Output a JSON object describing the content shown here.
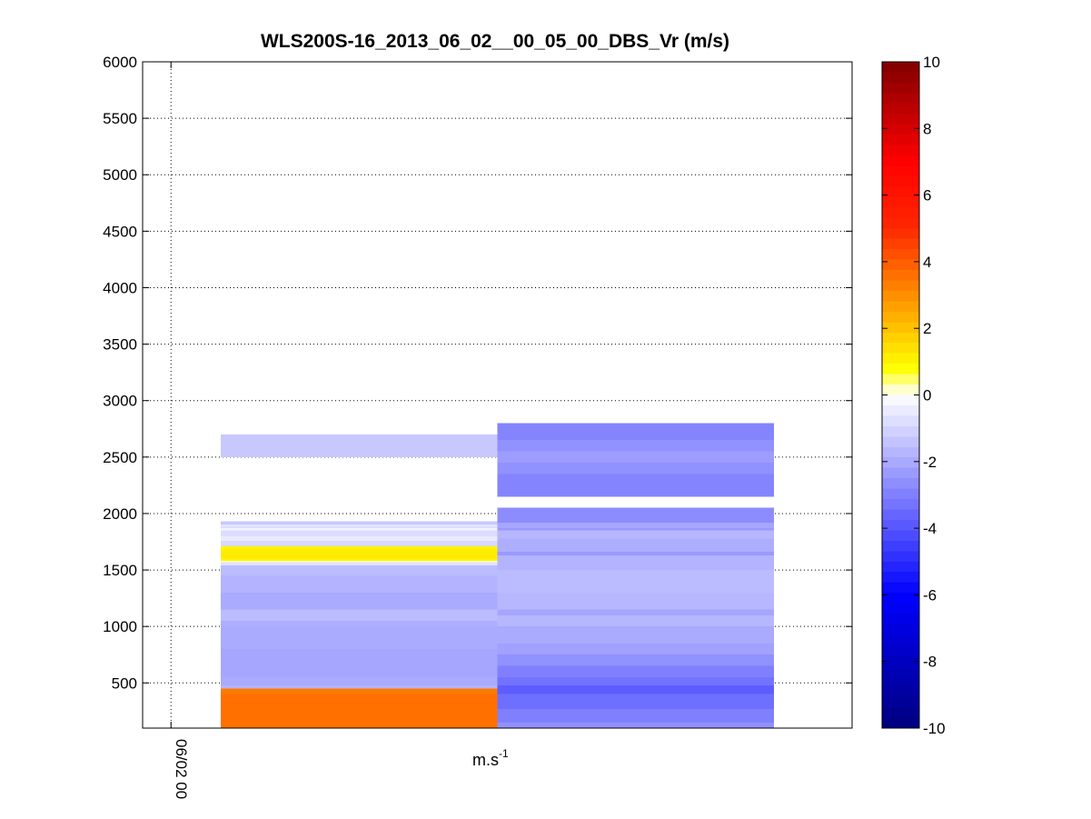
{
  "chart_data": {
    "type": "heatmap",
    "title": "WLS200S-16_2013_06_02__00_05_00_DBS_Vr (m/s)",
    "xlabel_base": "m.s",
    "xlabel_exponent": "-1",
    "ylabel": "",
    "ylim": [
      100,
      6000
    ],
    "yticks": [
      500,
      1000,
      1500,
      2000,
      2500,
      3000,
      3500,
      4000,
      4500,
      5000,
      5500,
      6000
    ],
    "xlim": [
      0,
      10
    ],
    "xticks": [
      {
        "x": 0.4,
        "label": "06/02 00"
      }
    ],
    "grid": true,
    "colorbar": {
      "range": [
        -10,
        10
      ],
      "ticks": [
        10,
        8,
        6,
        4,
        2,
        0,
        -2,
        -4,
        -6,
        -8,
        -10
      ],
      "placement": "right"
    },
    "columns": [
      {
        "x0": 1.1,
        "x1": 5.0,
        "cells": [
          {
            "y0": 100,
            "y1": 300,
            "v": 3.6
          },
          {
            "y0": 300,
            "y1": 400,
            "v": 3.6
          },
          {
            "y0": 400,
            "y1": 450,
            "v": 3.4
          },
          {
            "y0": 450,
            "y1": 480,
            "v": -1.8
          },
          {
            "y0": 480,
            "y1": 550,
            "v": -2.0
          },
          {
            "y0": 550,
            "y1": 800,
            "v": -2.1
          },
          {
            "y0": 800,
            "y1": 1000,
            "v": -2.0
          },
          {
            "y0": 1000,
            "y1": 1050,
            "v": -1.9
          },
          {
            "y0": 1050,
            "y1": 1150,
            "v": -1.6
          },
          {
            "y0": 1150,
            "y1": 1300,
            "v": -2.0
          },
          {
            "y0": 1300,
            "y1": 1450,
            "v": -1.8
          },
          {
            "y0": 1450,
            "y1": 1540,
            "v": -1.6
          },
          {
            "y0": 1540,
            "y1": 1570,
            "v": -0.7
          },
          {
            "y0": 1570,
            "y1": 1580,
            "v": 0.2
          },
          {
            "y0": 1580,
            "y1": 1600,
            "v": 1.0
          },
          {
            "y0": 1600,
            "y1": 1680,
            "v": 1.2
          },
          {
            "y0": 1680,
            "y1": 1710,
            "v": 1.0
          },
          {
            "y0": 1710,
            "y1": 1760,
            "v": -0.9
          },
          {
            "y0": 1760,
            "y1": 1800,
            "v": -0.5
          },
          {
            "y0": 1800,
            "y1": 1850,
            "v": -0.8
          },
          {
            "y0": 1850,
            "y1": 1870,
            "v": -0.3
          },
          {
            "y0": 1870,
            "y1": 1890,
            "v": -0.8
          },
          {
            "y0": 1890,
            "y1": 1900,
            "v": -0.2
          },
          {
            "y0": 1900,
            "y1": 1930,
            "v": -1.3
          },
          {
            "y0": 2500,
            "y1": 2700,
            "v": -1.3
          }
        ]
      },
      {
        "x0": 5.0,
        "x1": 8.9,
        "cells": [
          {
            "y0": 100,
            "y1": 150,
            "v": -2.6
          },
          {
            "y0": 150,
            "y1": 270,
            "v": -3.0
          },
          {
            "y0": 270,
            "y1": 400,
            "v": -3.4
          },
          {
            "y0": 400,
            "y1": 480,
            "v": -3.8
          },
          {
            "y0": 480,
            "y1": 550,
            "v": -3.3
          },
          {
            "y0": 550,
            "y1": 650,
            "v": -3.0
          },
          {
            "y0": 650,
            "y1": 750,
            "v": -2.6
          },
          {
            "y0": 750,
            "y1": 850,
            "v": -2.2
          },
          {
            "y0": 850,
            "y1": 1000,
            "v": -2.0
          },
          {
            "y0": 1000,
            "y1": 1100,
            "v": -1.7
          },
          {
            "y0": 1100,
            "y1": 1150,
            "v": -2.1
          },
          {
            "y0": 1150,
            "y1": 1300,
            "v": -1.7
          },
          {
            "y0": 1300,
            "y1": 1500,
            "v": -1.6
          },
          {
            "y0": 1500,
            "y1": 1630,
            "v": -1.8
          },
          {
            "y0": 1630,
            "y1": 1660,
            "v": -2.4
          },
          {
            "y0": 1660,
            "y1": 1780,
            "v": -1.9
          },
          {
            "y0": 1780,
            "y1": 1850,
            "v": -1.7
          },
          {
            "y0": 1850,
            "y1": 1870,
            "v": -2.4
          },
          {
            "y0": 1870,
            "y1": 1920,
            "v": -2.1
          },
          {
            "y0": 1920,
            "y1": 2050,
            "v": -2.7
          },
          {
            "y0": 2150,
            "y1": 2350,
            "v": -2.9
          },
          {
            "y0": 2350,
            "y1": 2450,
            "v": -2.6
          },
          {
            "y0": 2450,
            "y1": 2550,
            "v": -2.3
          },
          {
            "y0": 2550,
            "y1": 2650,
            "v": -2.6
          },
          {
            "y0": 2650,
            "y1": 2800,
            "v": -2.9
          }
        ]
      }
    ]
  }
}
